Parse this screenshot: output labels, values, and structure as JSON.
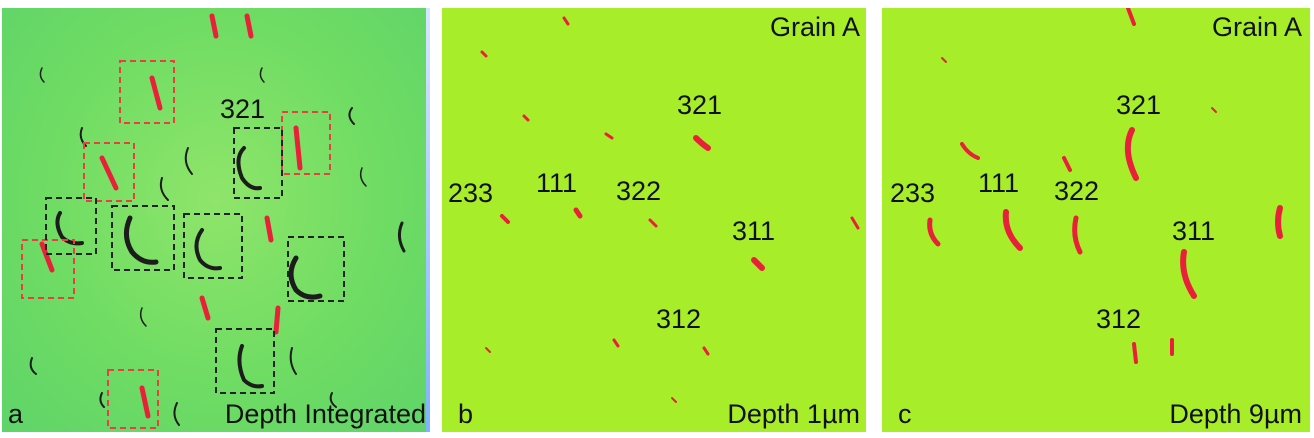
{
  "panels": [
    {
      "letter": "a",
      "caption": "Depth Integrated",
      "grain_label": "",
      "labels": [
        "321"
      ]
    },
    {
      "letter": "b",
      "caption": "Depth  1µm",
      "grain_label": "Grain A",
      "labels": [
        "321",
        "233",
        "111",
        "322",
        "311",
        "312"
      ]
    },
    {
      "letter": "c",
      "caption": "Depth  9µm",
      "grain_label": "Grain A",
      "labels": [
        "321",
        "233",
        "111",
        "322",
        "311",
        "312"
      ]
    }
  ],
  "colors": {
    "panel_a_background": "#6fdc63",
    "panel_bc_background": "#a8ed2a",
    "dislocation_red": "#e8203a",
    "dislocation_dark": "#1a1a1a",
    "red_box": "#e84040",
    "black_box": "#222222"
  }
}
